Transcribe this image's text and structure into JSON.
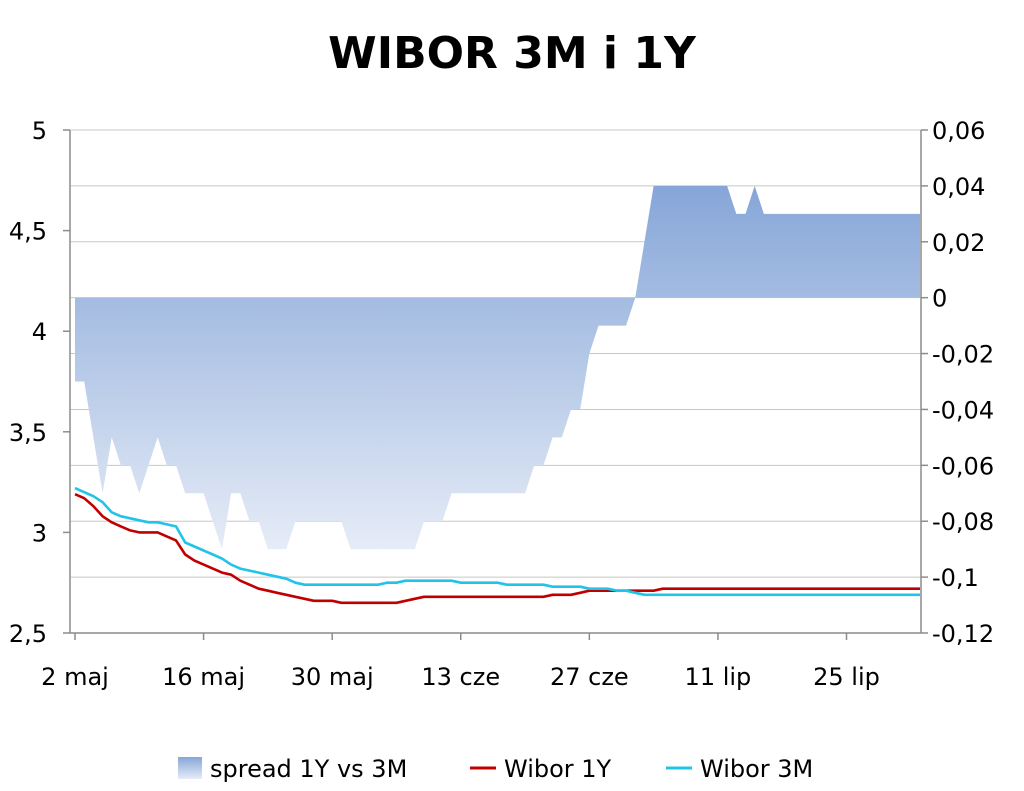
{
  "chart_data": {
    "type": "line",
    "title": "WIBOR 3M i 1Y",
    "xlabel": "",
    "ylabel": "",
    "x_tick_labels": [
      "2 maj",
      "16 maj",
      "30 maj",
      "13 cze",
      "27 cze",
      "11 lip",
      "25 lip"
    ],
    "x_tick_days": [
      0,
      14,
      28,
      42,
      56,
      70,
      84
    ],
    "ylim_left": [
      2.5,
      5
    ],
    "yticks_left": [
      "2,5",
      "3",
      "3,5",
      "4",
      "4,5",
      "5"
    ],
    "yticks_left_values": [
      2.5,
      3,
      3.5,
      4,
      4.5,
      5
    ],
    "ylim_right": [
      -0.12,
      0.06
    ],
    "yticks_right": [
      "-0,12",
      "-0,1",
      "-0,08",
      "-0,06",
      "-0,04",
      "-0,02",
      "0",
      "0,02",
      "0,04",
      "0,06"
    ],
    "yticks_right_values": [
      -0.12,
      -0.1,
      -0.08,
      -0.06,
      -0.04,
      -0.02,
      0,
      0.02,
      0.04,
      0.06
    ],
    "grid": true,
    "legend_position": "bottom",
    "days": [
      0,
      1,
      2,
      3,
      4,
      5,
      6,
      7,
      8,
      9,
      10,
      11,
      12,
      13,
      14,
      15,
      16,
      17,
      18,
      19,
      20,
      21,
      22,
      23,
      24,
      25,
      26,
      27,
      28,
      29,
      30,
      31,
      32,
      33,
      34,
      35,
      36,
      37,
      38,
      39,
      40,
      41,
      42,
      43,
      44,
      45,
      46,
      47,
      48,
      49,
      50,
      51,
      52,
      53,
      54,
      55,
      56,
      57,
      58,
      59,
      60,
      61,
      62,
      63,
      64,
      65,
      66,
      67,
      68,
      69,
      70,
      71,
      72,
      73,
      74,
      75,
      76,
      77,
      78,
      79,
      80,
      81,
      82,
      83,
      84,
      85,
      86,
      87,
      88,
      89,
      90,
      91,
      92
    ],
    "series": [
      {
        "name": "spread 1Y vs 3M",
        "axis": "right",
        "style": "area",
        "color": "#8eacdc",
        "values": [
          -0.03,
          -0.03,
          -0.05,
          -0.07,
          -0.05,
          -0.06,
          -0.06,
          -0.07,
          -0.06,
          -0.05,
          -0.06,
          -0.06,
          -0.07,
          -0.07,
          -0.07,
          -0.08,
          -0.09,
          -0.07,
          -0.07,
          -0.08,
          -0.08,
          -0.09,
          -0.09,
          -0.09,
          -0.08,
          -0.08,
          -0.08,
          -0.08,
          -0.08,
          -0.08,
          -0.09,
          -0.09,
          -0.09,
          -0.09,
          -0.09,
          -0.09,
          -0.09,
          -0.09,
          -0.08,
          -0.08,
          -0.08,
          -0.07,
          -0.07,
          -0.07,
          -0.07,
          -0.07,
          -0.07,
          -0.07,
          -0.07,
          -0.07,
          -0.06,
          -0.06,
          -0.05,
          -0.05,
          -0.04,
          -0.04,
          -0.02,
          -0.01,
          -0.01,
          -0.01,
          -0.01,
          0.0,
          0.02,
          0.04,
          0.04,
          0.04,
          0.04,
          0.04,
          0.04,
          0.04,
          0.04,
          0.04,
          0.03,
          0.03,
          0.04,
          0.03,
          0.03,
          0.03,
          0.03,
          0.03,
          0.03,
          0.03,
          0.03,
          0.03,
          0.03,
          0.03,
          0.03,
          0.03,
          0.03,
          0.03,
          0.03,
          0.03,
          0.03
        ]
      },
      {
        "name": "Wibor 1Y",
        "axis": "left",
        "style": "line",
        "color": "#c00000",
        "values": [
          3.19,
          3.17,
          3.13,
          3.08,
          3.05,
          3.03,
          3.01,
          3.0,
          3.0,
          3.0,
          2.98,
          2.96,
          2.89,
          2.86,
          2.84,
          2.82,
          2.8,
          2.79,
          2.76,
          2.74,
          2.72,
          2.71,
          2.7,
          2.69,
          2.68,
          2.67,
          2.66,
          2.66,
          2.66,
          2.65,
          2.65,
          2.65,
          2.65,
          2.65,
          2.65,
          2.65,
          2.66,
          2.67,
          2.68,
          2.68,
          2.68,
          2.68,
          2.68,
          2.68,
          2.68,
          2.68,
          2.68,
          2.68,
          2.68,
          2.68,
          2.68,
          2.68,
          2.69,
          2.69,
          2.69,
          2.7,
          2.71,
          2.71,
          2.71,
          2.71,
          2.71,
          2.71,
          2.71,
          2.71,
          2.72,
          2.72,
          2.72,
          2.72,
          2.72,
          2.72,
          2.72,
          2.72,
          2.72,
          2.72,
          2.72,
          2.72,
          2.72,
          2.72,
          2.72,
          2.72,
          2.72,
          2.72,
          2.72,
          2.72,
          2.72,
          2.72,
          2.72,
          2.72,
          2.72,
          2.72,
          2.72,
          2.72,
          2.72
        ]
      },
      {
        "name": "Wibor 3M",
        "axis": "left",
        "style": "line",
        "color": "#21c4e8",
        "values": [
          3.22,
          3.2,
          3.18,
          3.15,
          3.1,
          3.08,
          3.07,
          3.06,
          3.05,
          3.05,
          3.04,
          3.03,
          2.95,
          2.93,
          2.91,
          2.89,
          2.87,
          2.84,
          2.82,
          2.81,
          2.8,
          2.79,
          2.78,
          2.77,
          2.75,
          2.74,
          2.74,
          2.74,
          2.74,
          2.74,
          2.74,
          2.74,
          2.74,
          2.74,
          2.75,
          2.75,
          2.76,
          2.76,
          2.76,
          2.76,
          2.76,
          2.76,
          2.75,
          2.75,
          2.75,
          2.75,
          2.75,
          2.74,
          2.74,
          2.74,
          2.74,
          2.74,
          2.73,
          2.73,
          2.73,
          2.73,
          2.72,
          2.72,
          2.72,
          2.71,
          2.71,
          2.7,
          2.69,
          2.69,
          2.69,
          2.69,
          2.69,
          2.69,
          2.69,
          2.69,
          2.69,
          2.69,
          2.69,
          2.69,
          2.69,
          2.69,
          2.69,
          2.69,
          2.69,
          2.69,
          2.69,
          2.69,
          2.69,
          2.69,
          2.69,
          2.69,
          2.69,
          2.69,
          2.69,
          2.69,
          2.69,
          2.69,
          2.69
        ]
      }
    ]
  }
}
